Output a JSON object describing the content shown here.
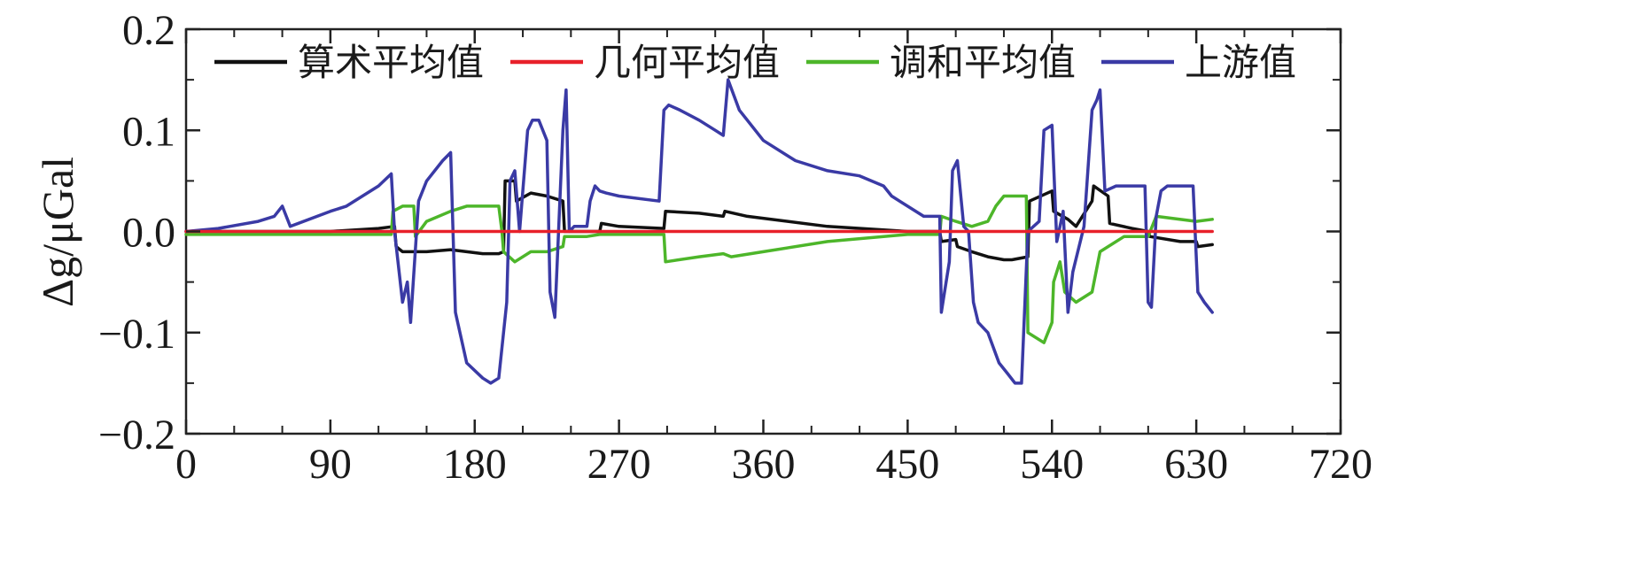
{
  "chart_data": {
    "type": "line",
    "title": "",
    "xlabel": "",
    "ylabel": "Δg/μGal",
    "xlim": [
      0,
      720
    ],
    "ylim": [
      -0.2,
      0.2
    ],
    "xticks": [
      0,
      90,
      180,
      270,
      360,
      450,
      540,
      630,
      720
    ],
    "xtick_labels": [
      "0",
      "90",
      "180",
      "270",
      "360",
      "450",
      "540",
      "630",
      "720"
    ],
    "yticks": [
      -0.2,
      -0.1,
      0.0,
      0.1,
      0.2
    ],
    "ytick_labels": [
      "−0.2",
      "−0.1",
      "0.0",
      "0.1",
      "0.2"
    ],
    "legend_position": "top",
    "series": [
      {
        "name": "算术平均值",
        "color": "#111111",
        "x": [
          0,
          90,
          120,
          130,
          131,
          135,
          150,
          165,
          175,
          185,
          195,
          198,
          199,
          205,
          206,
          215,
          225,
          235,
          236,
          250,
          258,
          259,
          270,
          298,
          299,
          320,
          335,
          336,
          350,
          400,
          450,
          470,
          471,
          480,
          481,
          490,
          500,
          510,
          515,
          525,
          526,
          540,
          541,
          550,
          555,
          565,
          566,
          575,
          576,
          590,
          600,
          601,
          620,
          630,
          631,
          640
        ],
        "values": [
          0,
          0,
          0.003,
          0.005,
          -0.015,
          -0.02,
          -0.02,
          -0.018,
          -0.02,
          -0.022,
          -0.022,
          -0.02,
          0.05,
          0.05,
          0.03,
          0.038,
          0.035,
          0.03,
          0.0,
          0.0,
          0.0,
          0.008,
          0.005,
          0.003,
          0.02,
          0.018,
          0.015,
          0.02,
          0.015,
          0.005,
          0.0,
          0.0,
          -0.01,
          -0.008,
          -0.015,
          -0.02,
          -0.025,
          -0.028,
          -0.028,
          -0.025,
          0.03,
          0.04,
          0.02,
          0.012,
          0.005,
          0.03,
          0.045,
          0.035,
          0.008,
          0.003,
          0.0,
          -0.005,
          -0.01,
          -0.01,
          -0.015,
          -0.013
        ]
      },
      {
        "name": "几何平均值",
        "color": "#e8202a",
        "x": [
          0,
          640
        ],
        "values": [
          0,
          0
        ]
      },
      {
        "name": "调和平均值",
        "color": "#4db62a",
        "x": [
          0,
          128,
          129,
          135,
          142,
          143,
          150,
          165,
          175,
          185,
          195,
          197,
          198,
          205,
          215,
          225,
          235,
          236,
          250,
          258,
          259,
          298,
          299,
          320,
          335,
          340,
          360,
          400,
          450,
          470,
          471,
          480,
          490,
          500,
          505,
          510,
          515,
          524,
          525,
          535,
          540,
          541,
          545,
          548,
          555,
          565,
          570,
          585,
          600,
          605,
          630,
          640
        ],
        "values": [
          -0.003,
          -0.003,
          0.02,
          0.025,
          0.025,
          -0.005,
          0.01,
          0.02,
          0.025,
          0.025,
          0.025,
          0.0,
          -0.02,
          -0.03,
          -0.02,
          -0.02,
          -0.015,
          -0.005,
          -0.005,
          -0.003,
          -0.003,
          -0.003,
          -0.03,
          -0.025,
          -0.022,
          -0.025,
          -0.02,
          -0.01,
          -0.003,
          -0.003,
          0.015,
          0.01,
          0.005,
          0.01,
          0.025,
          0.035,
          0.035,
          0.035,
          -0.1,
          -0.11,
          -0.09,
          -0.05,
          -0.03,
          -0.06,
          -0.07,
          -0.06,
          -0.02,
          -0.005,
          -0.005,
          0.015,
          0.01,
          0.012
        ]
      },
      {
        "name": "上游值",
        "color": "#3a3aa5",
        "x": [
          0,
          20,
          45,
          55,
          60,
          65,
          90,
          100,
          110,
          120,
          128,
          130,
          135,
          138,
          140,
          145,
          150,
          160,
          165,
          168,
          175,
          185,
          190,
          195,
          200,
          202,
          205,
          208,
          213,
          216,
          220,
          225,
          227,
          230,
          235,
          237,
          239,
          242,
          250,
          252,
          255,
          258,
          262,
          270,
          295,
          298,
          301,
          308,
          320,
          330,
          335,
          338,
          345,
          360,
          380,
          400,
          420,
          435,
          440,
          460,
          470,
          471,
          473,
          476,
          478,
          481,
          485,
          488,
          491,
          494,
          500,
          507,
          512,
          517,
          521,
          525,
          532,
          535,
          540,
          543,
          547,
          550,
          553,
          560,
          565,
          568,
          570,
          573,
          580,
          598,
          600,
          602,
          605,
          608,
          612,
          628,
          631,
          635,
          640
        ],
        "values": [
          0,
          0.003,
          0.01,
          0.015,
          0.025,
          0.005,
          0.02,
          0.025,
          0.035,
          0.045,
          0.057,
          0.0,
          -0.07,
          -0.05,
          -0.09,
          0.03,
          0.05,
          0.07,
          0.078,
          -0.08,
          -0.13,
          -0.145,
          -0.15,
          -0.145,
          -0.07,
          0.05,
          0.06,
          0.0,
          0.1,
          0.11,
          0.11,
          0.09,
          -0.06,
          -0.085,
          0.1,
          0.14,
          0.0,
          0.005,
          0.005,
          0.03,
          0.045,
          0.04,
          0.038,
          0.035,
          0.03,
          0.12,
          0.125,
          0.12,
          0.11,
          0.1,
          0.095,
          0.15,
          0.12,
          0.09,
          0.07,
          0.06,
          0.055,
          0.045,
          0.035,
          0.015,
          0.015,
          -0.08,
          -0.06,
          -0.03,
          0.06,
          0.07,
          0.005,
          0.0,
          -0.07,
          -0.09,
          -0.1,
          -0.13,
          -0.14,
          -0.15,
          -0.15,
          0.0,
          0.01,
          0.1,
          0.105,
          -0.01,
          0.02,
          -0.08,
          -0.04,
          0.005,
          0.12,
          0.13,
          0.14,
          0.04,
          0.045,
          0.045,
          -0.07,
          -0.075,
          0.015,
          0.04,
          0.045,
          0.045,
          -0.06,
          -0.07,
          -0.08
        ]
      }
    ]
  }
}
